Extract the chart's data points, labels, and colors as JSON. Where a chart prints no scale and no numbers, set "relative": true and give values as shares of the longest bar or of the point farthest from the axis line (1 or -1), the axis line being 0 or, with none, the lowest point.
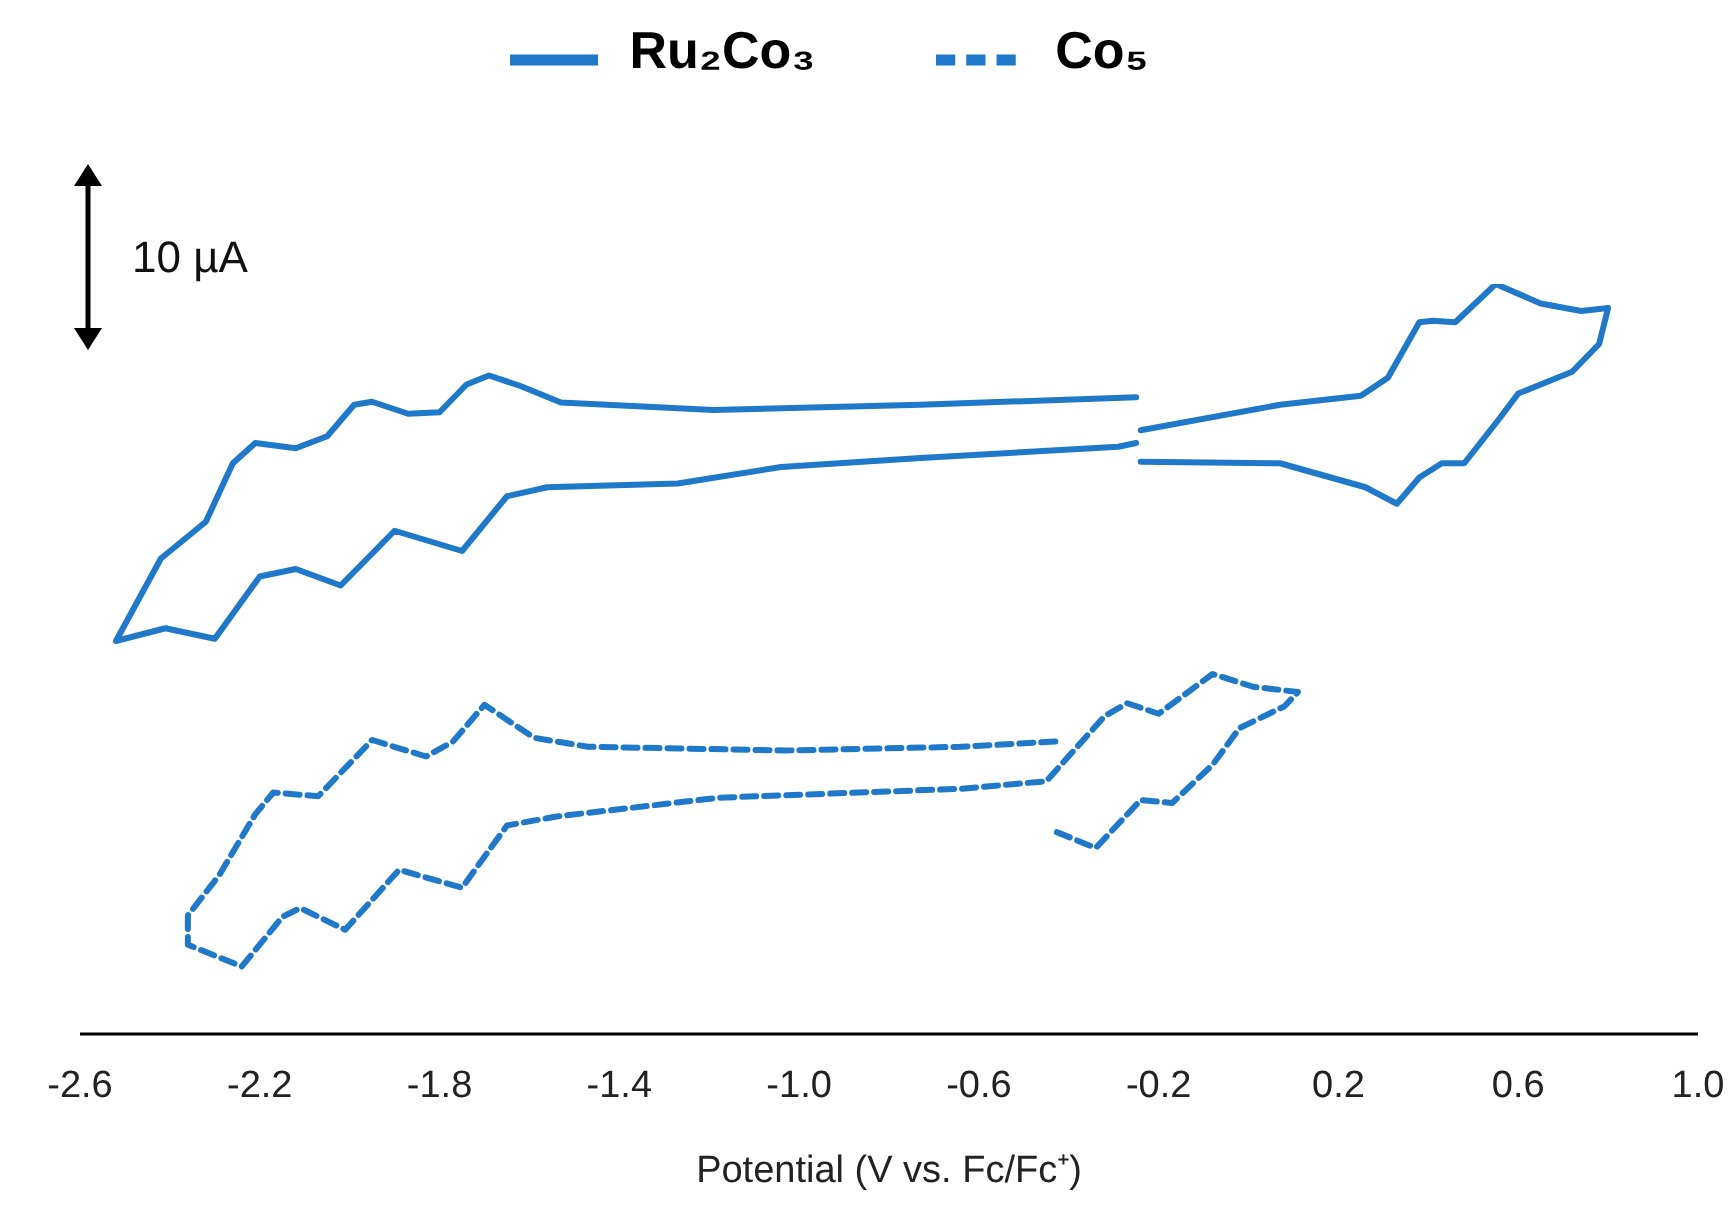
{
  "chart_data": {
    "type": "line",
    "relative": true,
    "xlabel": "Potential (V vs. Fc/Fc⁺)",
    "xlim": [
      -2.6,
      1.0
    ],
    "xticks": [
      -2.6,
      -2.2,
      -1.8,
      -1.4,
      {
        "value": -1,
        "label": "-1.0"
      },
      -0.6,
      -0.2,
      0.2,
      0.6,
      {
        "value": 1,
        "label": "1.0"
      }
    ],
    "legend": "top",
    "grid": false,
    "marker": "none",
    "annotations": [
      "10 µA"
    ],
    "series": [
      {
        "name": "Ru₂Co₃",
        "color": "#1f78c8",
        "line_style": "solid",
        "x": [
          -0.25,
          -0.73,
          -1.19,
          -1.53,
          -1.62,
          -1.69,
          -1.74,
          -1.8,
          -1.87,
          -1.95,
          -1.99,
          -2.05,
          -2.12,
          -2.21,
          -2.26,
          -2.32,
          -2.42,
          -2.52,
          -2.41,
          -2.3,
          -2.2,
          -2.12,
          -2.02,
          -1.9,
          -1.75,
          -1.65,
          -1.56,
          -1.27,
          -1.04,
          -0.73,
          -0.29,
          -0.25,
          -0.245,
          -0.24,
          0.07,
          0.25,
          0.31,
          0.38,
          0.41,
          0.46,
          0.55,
          0.65,
          0.74,
          0.8,
          0.78,
          0.72,
          0.6,
          0.56,
          0.48,
          0.43,
          0.38,
          0.33,
          0.26,
          0.07,
          -0.24
        ],
        "values": [
          0.849,
          0.839,
          0.832,
          0.842,
          0.864,
          0.878,
          0.866,
          0.829,
          0.827,
          0.843,
          0.839,
          0.797,
          0.781,
          0.788,
          0.761,
          0.683,
          0.634,
          0.524,
          0.541,
          0.527,
          0.61,
          0.62,
          0.598,
          0.671,
          0.644,
          0.717,
          0.729,
          0.734,
          0.756,
          0.768,
          0.783,
          0.788,
          null,
          0.805,
          0.839,
          0.851,
          0.875,
          0.949,
          0.951,
          0.949,
          1,
          0.974,
          0.964,
          0.968,
          0.92,
          0.883,
          0.854,
          0.822,
          0.761,
          0.761,
          0.742,
          0.707,
          0.729,
          0.761,
          0.763
        ]
      },
      {
        "name": "Co₅",
        "color": "#1f78c8",
        "line_style": "dashed",
        "x": [
          -0.43,
          -0.64,
          -1.03,
          -1.47,
          -1.59,
          -1.7,
          -1.77,
          -1.83,
          -1.95,
          -2.07,
          -2.17,
          -2.21,
          -2.29,
          -2.36,
          -2.36,
          -2.24,
          -2.15,
          -2.11,
          -2.01,
          -1.89,
          -1.75,
          -1.65,
          -1.54,
          -1.18,
          -0.64,
          -0.45,
          -0.32,
          -0.27,
          -0.2,
          -0.08,
          0.01,
          0.11,
          0.08,
          -0.02,
          -0.08,
          -0.17,
          -0.24,
          -0.34,
          -0.43
        ],
        "values": [
          0.39,
          0.383,
          0.378,
          0.383,
          0.395,
          0.439,
          0.39,
          0.37,
          0.392,
          0.317,
          0.322,
          0.293,
          0.212,
          0.158,
          0.119,
          0.09,
          0.156,
          0.168,
          0.139,
          0.219,
          0.195,
          0.278,
          0.29,
          0.315,
          0.327,
          0.337,
          0.424,
          0.441,
          0.427,
          0.48,
          0.463,
          0.456,
          0.437,
          0.408,
          0.359,
          0.308,
          0.312,
          0.248,
          0.27
        ]
      }
    ]
  }
}
